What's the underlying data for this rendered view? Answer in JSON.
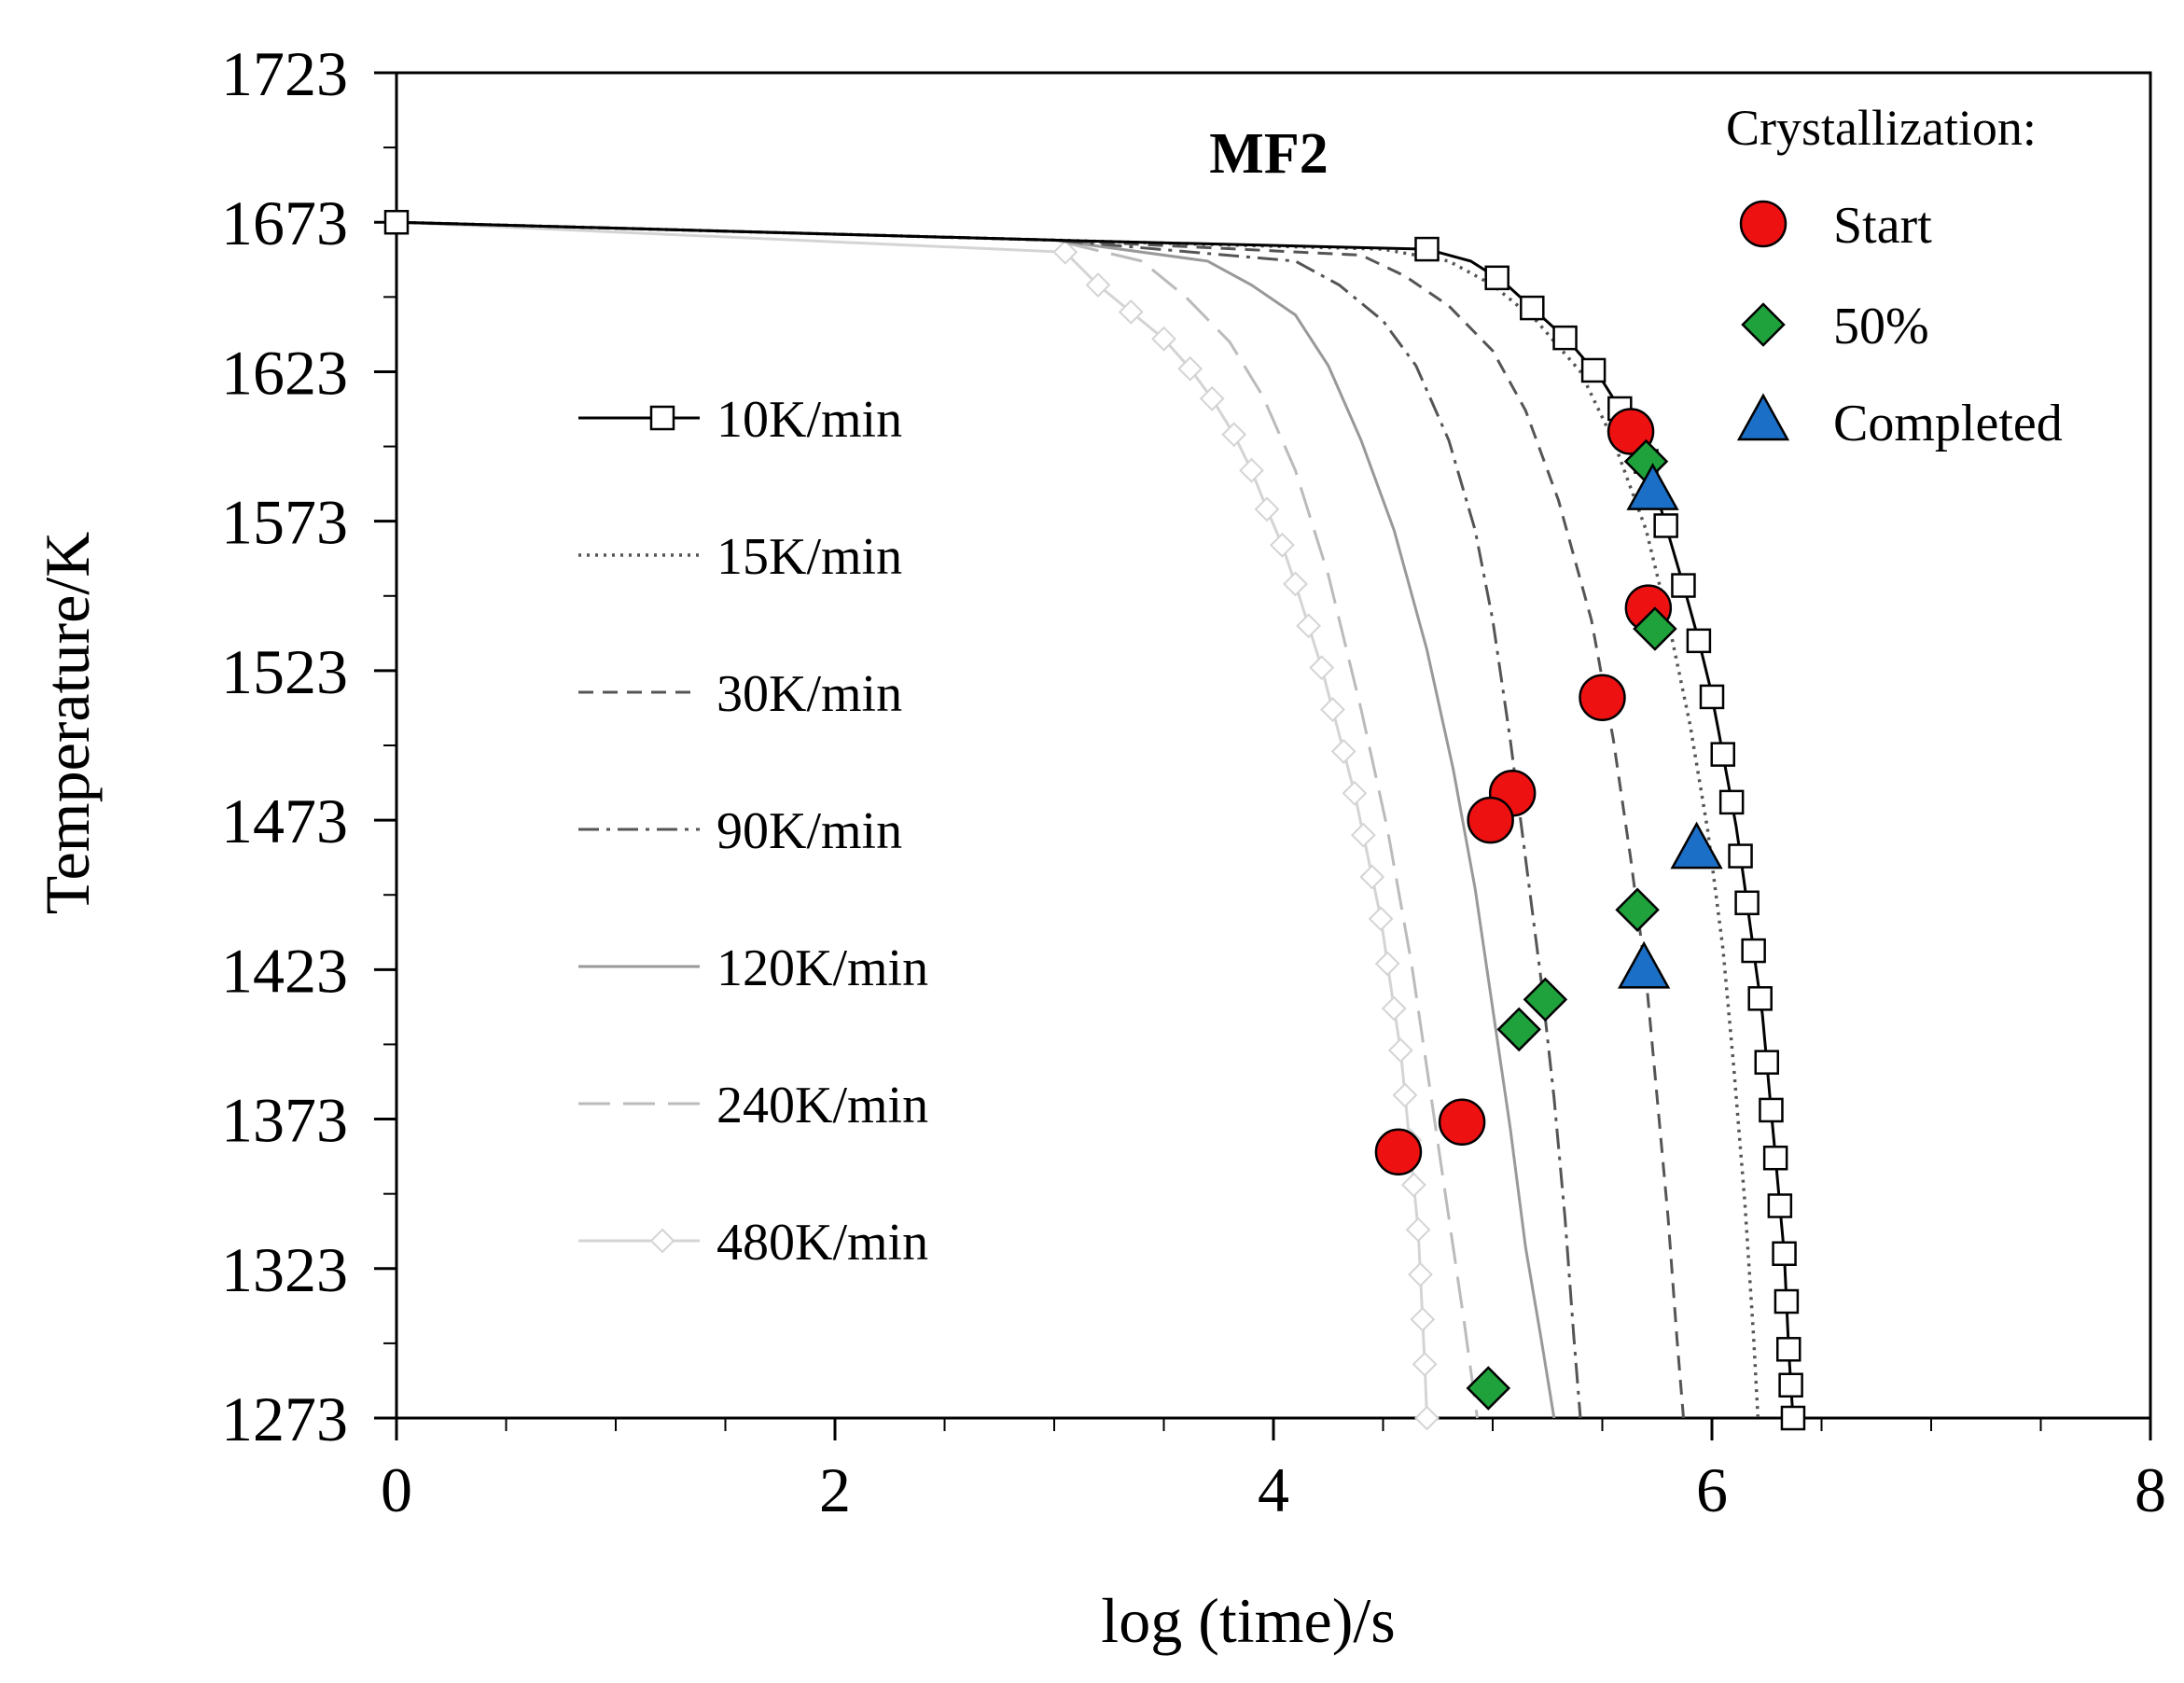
{
  "chart_data": {
    "type": "line",
    "title": "MF2",
    "xlabel": "log (time)/s",
    "ylabel": "Temperature/K",
    "xlim": [
      0,
      8
    ],
    "ylim": [
      1273,
      1723
    ],
    "x_ticks": [
      "0",
      "2",
      "4",
      "6",
      "8"
    ],
    "y_ticks": [
      "1273",
      "1323",
      "1373",
      "1423",
      "1473",
      "1523",
      "1573",
      "1623",
      "1673",
      "1723"
    ],
    "series": [
      {
        "name": "10K/min",
        "style": "solid-square",
        "color": "#000000",
        "points": [
          [
            0,
            1673
          ],
          [
            3,
            1667
          ],
          [
            4.7,
            1664
          ],
          [
            4.9,
            1660
          ],
          [
            5.05,
            1653
          ],
          [
            5.2,
            1643
          ],
          [
            5.35,
            1633
          ],
          [
            5.5,
            1620
          ],
          [
            5.62,
            1606
          ],
          [
            5.7,
            1593
          ],
          [
            5.76,
            1579
          ],
          [
            5.82,
            1564
          ],
          [
            5.88,
            1549
          ],
          [
            5.94,
            1533
          ],
          [
            5.99,
            1518
          ],
          [
            6.03,
            1503
          ],
          [
            6.07,
            1487
          ],
          [
            6.11,
            1471
          ],
          [
            6.14,
            1456
          ],
          [
            6.17,
            1440
          ],
          [
            6.2,
            1424
          ],
          [
            6.23,
            1408
          ],
          [
            6.25,
            1392
          ],
          [
            6.27,
            1376
          ],
          [
            6.29,
            1360
          ],
          [
            6.31,
            1344
          ],
          [
            6.33,
            1328
          ],
          [
            6.34,
            1312
          ],
          [
            6.35,
            1296
          ],
          [
            6.36,
            1284
          ],
          [
            6.37,
            1273
          ]
        ],
        "markers_x": [
          0,
          4.7,
          5.02,
          5.18,
          5.33,
          5.46,
          5.58,
          5.7,
          5.79,
          5.87,
          5.94,
          6,
          6.05,
          6.09,
          6.13,
          6.16,
          6.19,
          6.22,
          6.25,
          6.27,
          6.29,
          6.31,
          6.33,
          6.34,
          6.35,
          6.36,
          6.37
        ]
      },
      {
        "name": "15K/min",
        "style": "dotted",
        "color": "#555555",
        "points": [
          [
            0,
            1673
          ],
          [
            3,
            1667
          ],
          [
            4.5,
            1664
          ],
          [
            4.8,
            1660
          ],
          [
            5,
            1652
          ],
          [
            5.2,
            1640
          ],
          [
            5.4,
            1623
          ],
          [
            5.55,
            1600
          ],
          [
            5.7,
            1570
          ],
          [
            5.8,
            1540
          ],
          [
            5.9,
            1505
          ],
          [
            5.98,
            1470
          ],
          [
            6.05,
            1430
          ],
          [
            6.1,
            1390
          ],
          [
            6.15,
            1345
          ],
          [
            6.19,
            1300
          ],
          [
            6.21,
            1273
          ]
        ]
      },
      {
        "name": "30K/min",
        "style": "dashed",
        "color": "#555555",
        "points": [
          [
            0,
            1673
          ],
          [
            3,
            1667
          ],
          [
            4.4,
            1662
          ],
          [
            4.6,
            1655
          ],
          [
            4.8,
            1645
          ],
          [
            5,
            1630
          ],
          [
            5.15,
            1610
          ],
          [
            5.3,
            1580
          ],
          [
            5.45,
            1540
          ],
          [
            5.55,
            1500
          ],
          [
            5.63,
            1460
          ],
          [
            5.7,
            1420
          ],
          [
            5.75,
            1380
          ],
          [
            5.8,
            1340
          ],
          [
            5.84,
            1300
          ],
          [
            5.87,
            1273
          ]
        ]
      },
      {
        "name": "90K/min",
        "style": "dash-dot",
        "color": "#555555",
        "points": [
          [
            0,
            1673
          ],
          [
            3,
            1667
          ],
          [
            4.1,
            1660
          ],
          [
            4.3,
            1652
          ],
          [
            4.5,
            1640
          ],
          [
            4.65,
            1625
          ],
          [
            4.8,
            1600
          ],
          [
            4.92,
            1570
          ],
          [
            5,
            1540
          ],
          [
            5.08,
            1500
          ],
          [
            5.15,
            1460
          ],
          [
            5.22,
            1420
          ],
          [
            5.28,
            1380
          ],
          [
            5.33,
            1340
          ],
          [
            5.37,
            1300
          ],
          [
            5.4,
            1273
          ]
        ]
      },
      {
        "name": "120K/min",
        "style": "solid",
        "color": "#999999",
        "points": [
          [
            0,
            1673
          ],
          [
            3,
            1667
          ],
          [
            3.7,
            1660
          ],
          [
            3.9,
            1652
          ],
          [
            4.1,
            1642
          ],
          [
            4.25,
            1625
          ],
          [
            4.4,
            1600
          ],
          [
            4.55,
            1570
          ],
          [
            4.7,
            1530
          ],
          [
            4.82,
            1490
          ],
          [
            4.92,
            1450
          ],
          [
            5,
            1410
          ],
          [
            5.08,
            1370
          ],
          [
            5.15,
            1330
          ],
          [
            5.22,
            1300
          ],
          [
            5.28,
            1273
          ]
        ]
      },
      {
        "name": "240K/min",
        "style": "long-dash",
        "color": "#bbbbbb",
        "points": [
          [
            0,
            1673
          ],
          [
            3,
            1667
          ],
          [
            3.4,
            1660
          ],
          [
            3.6,
            1648
          ],
          [
            3.8,
            1633
          ],
          [
            3.95,
            1615
          ],
          [
            4.1,
            1590
          ],
          [
            4.25,
            1555
          ],
          [
            4.4,
            1510
          ],
          [
            4.52,
            1470
          ],
          [
            4.63,
            1425
          ],
          [
            4.72,
            1380
          ],
          [
            4.8,
            1340
          ],
          [
            4.87,
            1305
          ],
          [
            4.93,
            1273
          ]
        ]
      },
      {
        "name": "480K/min",
        "style": "solid-diamond",
        "color": "#d4d4d4",
        "points": [
          [
            0,
            1673
          ],
          [
            3.05,
            1663
          ],
          [
            3.2,
            1652
          ],
          [
            3.35,
            1643
          ],
          [
            3.5,
            1634
          ],
          [
            3.62,
            1624
          ],
          [
            3.72,
            1614
          ],
          [
            3.82,
            1602
          ],
          [
            3.9,
            1590
          ],
          [
            3.97,
            1577
          ],
          [
            4.04,
            1565
          ],
          [
            4.1,
            1552
          ],
          [
            4.16,
            1538
          ],
          [
            4.22,
            1524
          ],
          [
            4.27,
            1510
          ],
          [
            4.32,
            1496
          ],
          [
            4.37,
            1482
          ],
          [
            4.41,
            1468
          ],
          [
            4.45,
            1454
          ],
          [
            4.49,
            1440
          ],
          [
            4.52,
            1425
          ],
          [
            4.55,
            1410
          ],
          [
            4.58,
            1396
          ],
          [
            4.6,
            1381
          ],
          [
            4.62,
            1366
          ],
          [
            4.64,
            1351
          ],
          [
            4.66,
            1336
          ],
          [
            4.67,
            1321
          ],
          [
            4.68,
            1306
          ],
          [
            4.69,
            1291
          ],
          [
            4.7,
            1273
          ]
        ]
      }
    ],
    "legend_title": "Crystallization:",
    "legend_labels": [
      "Start",
      "50%",
      "Completed"
    ],
    "crystallization": {
      "start": [
        [
          5.63,
          1603
        ],
        [
          5.71,
          1544
        ],
        [
          5.5,
          1514
        ],
        [
          5.09,
          1482
        ],
        [
          4.99,
          1473
        ],
        [
          4.86,
          1372
        ],
        [
          4.57,
          1362
        ]
      ],
      "fifty": [
        [
          5.7,
          1593
        ],
        [
          5.74,
          1537
        ],
        [
          5.66,
          1443
        ],
        [
          5.24,
          1413
        ],
        [
          5.12,
          1403
        ],
        [
          4.98,
          1283
        ]
      ],
      "completed": [
        [
          5.73,
          1583
        ],
        [
          5.93,
          1463
        ],
        [
          5.69,
          1423
        ]
      ]
    }
  }
}
